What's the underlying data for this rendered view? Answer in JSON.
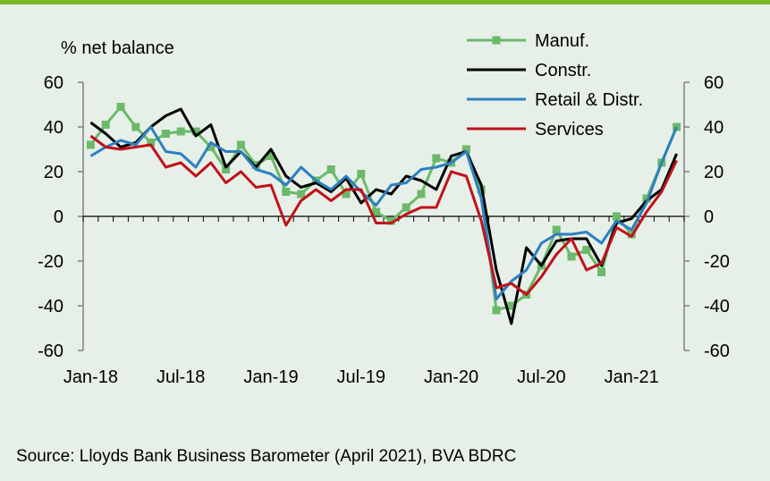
{
  "source": "Source: Lloyds Bank Business Barometer (April 2021), BVA BDRC",
  "chart_data": {
    "type": "line",
    "ylabel": "% net balance",
    "ylim": [
      -60,
      60
    ],
    "yticks": [
      -60,
      -40,
      -20,
      0,
      20,
      40,
      60
    ],
    "secondary_y_axis": true,
    "x_tick_labels": [
      "Jan-18",
      "Jul-18",
      "Jan-19",
      "Jul-19",
      "Jan-20",
      "Jul-20",
      "Jan-21"
    ],
    "x_tick_positions": [
      0,
      6,
      12,
      18,
      24,
      30,
      36
    ],
    "legend_position": "top-right",
    "x": [
      "Jan-18",
      "Feb-18",
      "Mar-18",
      "Apr-18",
      "May-18",
      "Jun-18",
      "Jul-18",
      "Aug-18",
      "Sep-18",
      "Oct-18",
      "Nov-18",
      "Dec-18",
      "Jan-19",
      "Feb-19",
      "Mar-19",
      "Apr-19",
      "May-19",
      "Jun-19",
      "Jul-19",
      "Aug-19",
      "Sep-19",
      "Oct-19",
      "Nov-19",
      "Dec-19",
      "Jan-20",
      "Feb-20",
      "Mar-20",
      "Apr-20",
      "May-20",
      "Jun-20",
      "Jul-20",
      "Aug-20",
      "Sep-20",
      "Oct-20",
      "Nov-20",
      "Dec-20",
      "Jan-21",
      "Feb-21",
      "Mar-21",
      "Apr-21"
    ],
    "series": [
      {
        "name": "Manuf.",
        "color": "#6cb96a",
        "marker": "square",
        "values": [
          32,
          41,
          49,
          40,
          33,
          37,
          38,
          38,
          31,
          21,
          32,
          23,
          27,
          11,
          10,
          16,
          21,
          10,
          19,
          2,
          -2,
          4,
          10,
          26,
          24,
          30,
          12,
          -42,
          -40,
          -35,
          -22,
          -6,
          -18,
          -15,
          -25,
          0,
          -8,
          8,
          24,
          40
        ]
      },
      {
        "name": "Constr.",
        "color": "#000000",
        "values": [
          42,
          37,
          31,
          33,
          40,
          45,
          48,
          36,
          41,
          22,
          29,
          22,
          30,
          18,
          13,
          15,
          11,
          17,
          6,
          12,
          10,
          18,
          16,
          12,
          27,
          29,
          14,
          -24,
          -48,
          -14,
          -22,
          -11,
          -10,
          -10,
          -22,
          -3,
          -1,
          7,
          12,
          28
        ]
      },
      {
        "name": "Retail & Distr.",
        "color": "#2e7fc0",
        "values": [
          27,
          31,
          34,
          32,
          40,
          29,
          28,
          22,
          33,
          29,
          29,
          21,
          19,
          14,
          22,
          16,
          12,
          18,
          11,
          5,
          14,
          15,
          21,
          22,
          24,
          29,
          8,
          -37,
          -29,
          -24,
          -12,
          -8,
          -8,
          -7,
          -12,
          -2,
          -6,
          6,
          24,
          40
        ]
      },
      {
        "name": "Services",
        "color": "#c0121a",
        "values": [
          36,
          31,
          30,
          31,
          32,
          22,
          24,
          18,
          24,
          15,
          20,
          13,
          14,
          -4,
          7,
          12,
          7,
          12,
          12,
          -3,
          -3,
          1,
          4,
          4,
          20,
          18,
          -2,
          -32,
          -30,
          -35,
          -27,
          -17,
          -10,
          -24,
          -21,
          -5,
          -9,
          2,
          11,
          25
        ]
      }
    ]
  }
}
